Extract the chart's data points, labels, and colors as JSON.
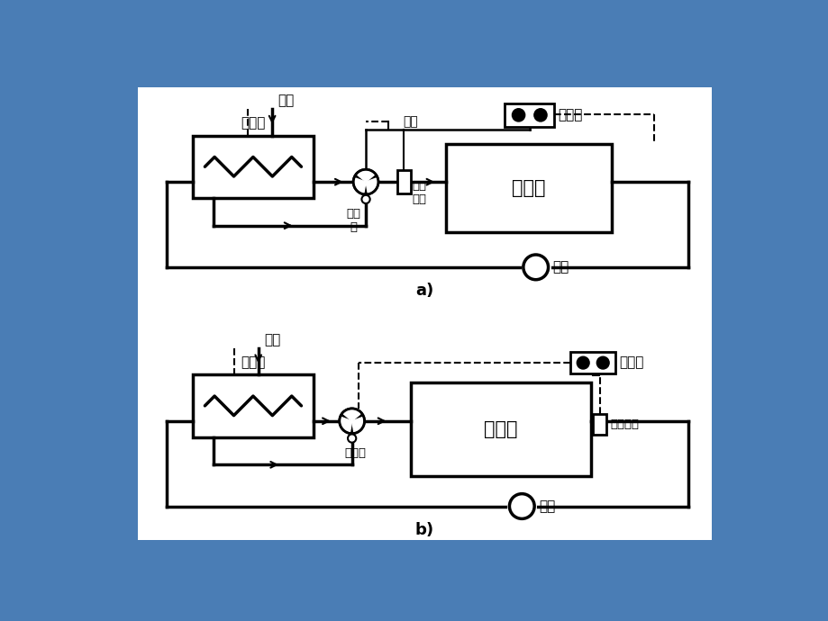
{
  "bg_color": "#4a7db5",
  "black": "#000000",
  "white": "#ffffff",
  "diagram_a_label": "a)",
  "diagram_b_label": "b)",
  "cooler_label": "冷却器",
  "engine_label": "柴油机",
  "seawater_label": "海水",
  "valve_label_a": "三通\n阀",
  "valve_label_b": "三通阀",
  "sensor_label_a": "感温\n元件",
  "sensor_label_b": "感温元件",
  "pump_label": "水泵",
  "air_label": "空气",
  "regulator_label": "调节器"
}
